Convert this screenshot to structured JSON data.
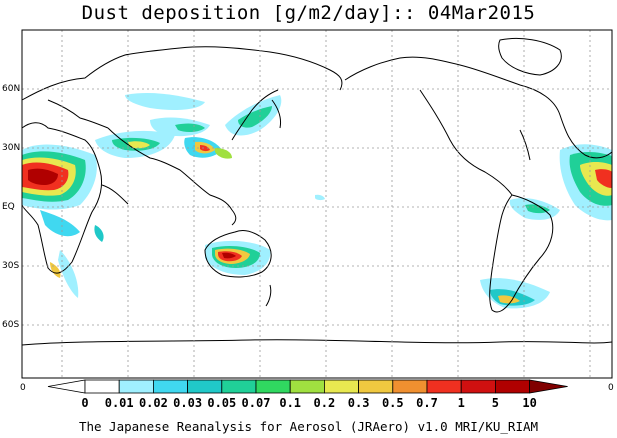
{
  "title": "Dust deposition [g/m2/day]:: 04Mar2015",
  "lat_labels": [
    "60N",
    "30N",
    "EQ",
    "30S",
    "60S"
  ],
  "lon_labels": [
    "0",
    "0"
  ],
  "colorbar": {
    "labels": [
      "0",
      "0.01",
      "0.02",
      "0.03",
      "0.05",
      "0.07",
      "0.1",
      "0.2",
      "0.3",
      "0.5",
      "0.7",
      "1",
      "5",
      "10"
    ],
    "colors": [
      "#ffffff",
      "#a0f0ff",
      "#40d8f0",
      "#20c8c8",
      "#20d098",
      "#30d860",
      "#a0e040",
      "#e8e850",
      "#f0c840",
      "#f09030",
      "#f03020",
      "#d01010",
      "#b00000",
      "#800000"
    ]
  },
  "footer": "The Japanese Reanalysis for Aerosol (JRAero) v1.0 MRI/KU_RIAM"
}
